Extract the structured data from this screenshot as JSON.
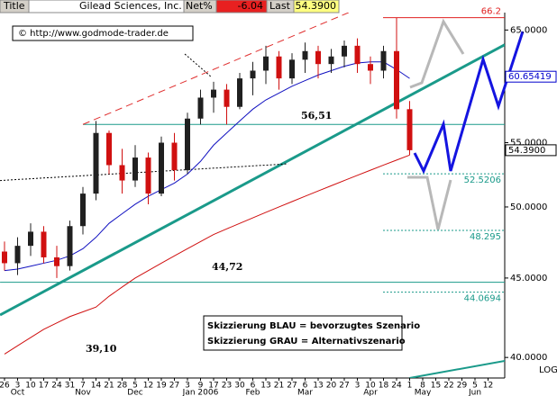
{
  "chart_data": {
    "type": "candlestick",
    "header": {
      "title_label": "Title",
      "name": "Gilead Sciences, Inc.",
      "net_label": "Net%",
      "net_value": "-6.04",
      "last_label": "Last",
      "last_value": "54.3900"
    },
    "watermark": "© http://www.godmode-trader.de",
    "legend_lines": [
      "Skizzierung BLAU = bevorzugtes Szenario",
      "Skizzierung GRAU = Alternativszenario"
    ],
    "annotations": [
      "56,51",
      "44,72",
      "39,10"
    ],
    "log_label": "LOG",
    "log_scale": true,
    "categories": [
      "26",
      "3",
      "10",
      "17",
      "24",
      "31",
      "7",
      "14",
      "21",
      "28",
      "5",
      "12",
      "19",
      "27",
      "3",
      "9",
      "17",
      "23",
      "30",
      "6",
      "13",
      "21",
      "27",
      "6",
      "13",
      "20",
      "27",
      "3",
      "10",
      "18",
      "24",
      "1",
      "8",
      "15",
      "22",
      "29",
      "5",
      "12"
    ],
    "month_labels": [
      null,
      "Oct",
      null,
      null,
      null,
      null,
      "Nov",
      null,
      null,
      null,
      "Dec",
      null,
      null,
      null,
      null,
      "Jan 2006",
      null,
      null,
      null,
      "Feb",
      null,
      null,
      null,
      "Mar",
      null,
      null,
      null,
      null,
      "Apr",
      null,
      null,
      null,
      "May",
      null,
      null,
      null,
      "Jun",
      null
    ],
    "open": [
      46.8,
      46.0,
      47.2,
      48.2,
      46.4,
      45.8,
      48.6,
      51.0,
      55.8,
      53.2,
      52.0,
      53.8,
      51.0,
      55.0,
      52.8,
      57.0,
      58.8,
      59.5,
      58.0,
      60.5,
      61.2,
      62.5,
      60.5,
      62.2,
      63.0,
      61.8,
      62.5,
      63.5,
      61.8,
      61.2,
      63.0,
      57.8,
      null,
      null,
      null,
      null,
      null,
      null
    ],
    "high": [
      47.5,
      47.8,
      48.8,
      48.6,
      47.2,
      49.0,
      51.5,
      56.8,
      56.0,
      54.5,
      54.8,
      54.2,
      55.5,
      55.8,
      57.5,
      59.5,
      60.2,
      60.0,
      61.0,
      62.0,
      63.5,
      63.0,
      62.8,
      63.8,
      63.5,
      63.2,
      64.0,
      64.2,
      62.5,
      63.5,
      66.2,
      58.5,
      null,
      null,
      null,
      null,
      null,
      null
    ],
    "low": [
      45.5,
      45.2,
      46.5,
      46.0,
      45.0,
      45.5,
      48.0,
      50.5,
      52.5,
      51.0,
      51.5,
      50.2,
      50.8,
      52.0,
      52.5,
      56.5,
      57.5,
      56.5,
      57.8,
      59.0,
      60.0,
      59.5,
      60.0,
      61.0,
      60.5,
      61.0,
      61.5,
      61.0,
      60.0,
      60.5,
      57.0,
      54.0,
      null,
      null,
      null,
      null,
      null,
      null
    ],
    "close": [
      46.0,
      47.2,
      48.2,
      46.4,
      45.8,
      48.6,
      51.0,
      55.8,
      53.2,
      52.0,
      53.8,
      51.0,
      55.0,
      52.8,
      57.0,
      58.8,
      59.5,
      58.0,
      60.5,
      61.2,
      62.5,
      60.5,
      62.2,
      63.0,
      61.8,
      62.5,
      63.5,
      61.8,
      61.2,
      63.0,
      57.8,
      54.39,
      null,
      null,
      null,
      null,
      null,
      null
    ],
    "up_color": "#202020",
    "down_color": "#d01010",
    "series": [
      {
        "color": "#1010c0",
        "values": [
          45.5,
          45.6,
          45.8,
          46.0,
          46.2,
          46.5,
          47.0,
          47.8,
          48.8,
          49.5,
          50.2,
          50.8,
          51.3,
          51.8,
          52.5,
          53.5,
          54.8,
          55.8,
          56.8,
          57.8,
          58.6,
          59.2,
          59.8,
          60.3,
          60.8,
          61.2,
          61.6,
          61.9,
          62.0,
          62.0,
          61.3,
          60.5,
          null,
          null,
          null,
          null,
          null,
          null
        ]
      },
      {
        "color": "#d01010",
        "values": [
          40.2,
          40.7,
          41.2,
          41.7,
          42.1,
          42.5,
          42.8,
          43.1,
          43.8,
          44.4,
          45.0,
          45.5,
          46.0,
          46.5,
          47.0,
          47.5,
          48.0,
          48.4,
          48.8,
          49.2,
          49.6,
          50.0,
          50.4,
          50.8,
          51.2,
          51.6,
          52.0,
          52.4,
          52.8,
          53.2,
          53.6,
          54.0,
          null,
          null,
          null,
          null,
          null,
          null
        ]
      }
    ],
    "trendlines": [
      {
        "from": [
          -0.34,
          42.6
        ],
        "to": [
          38.28,
          63.6
        ],
        "color": "#1a9a8a",
        "width": 3
      },
      {
        "from": [
          6.0,
          56.51
        ],
        "to": [
          27.24,
          67.2
        ],
        "color": "#e03030",
        "width": 1,
        "dash": true
      },
      {
        "from": [
          -0.34,
          52.0
        ],
        "to": [
          21.7,
          53.3
        ],
        "color": "#000000",
        "width": 1,
        "dash": true
      },
      {
        "from": [
          31.0,
          38.8
        ],
        "to": [
          38.28,
          39.8
        ],
        "color": "#1a9a8a",
        "width": 2
      }
    ],
    "horizontal_lines": [
      {
        "value": 56.51,
        "start": 6.0,
        "color": "#1a9a8a"
      },
      {
        "value": 44.72,
        "start": -0.34,
        "color": "#1a9a8a"
      }
    ],
    "levels": [
      {
        "value": 66.2,
        "color": "#e02020",
        "style": "solid"
      },
      {
        "value": 52.5206,
        "color": "#1a9a8a",
        "style": "dotted"
      },
      {
        "value": 48.295,
        "color": "#1a9a8a",
        "style": "dotted"
      },
      {
        "value": 44.0694,
        "color": "#1a9a8a",
        "style": "dotted"
      }
    ],
    "tags": [
      {
        "value": 60.65419,
        "color": "#0000cc"
      },
      {
        "value": 54.39,
        "label": "54.3900",
        "color": "#000000"
      }
    ],
    "ylim": [
      38.8,
      66.7
    ],
    "yticks": [
      {
        "value": 65,
        "label": "65.0000"
      },
      {
        "value": 55,
        "label": "55.0000"
      },
      {
        "value": 50,
        "label": "50.0000"
      },
      {
        "value": 45,
        "label": "45.0000"
      },
      {
        "value": 40,
        "label": "40.0000"
      }
    ]
  }
}
